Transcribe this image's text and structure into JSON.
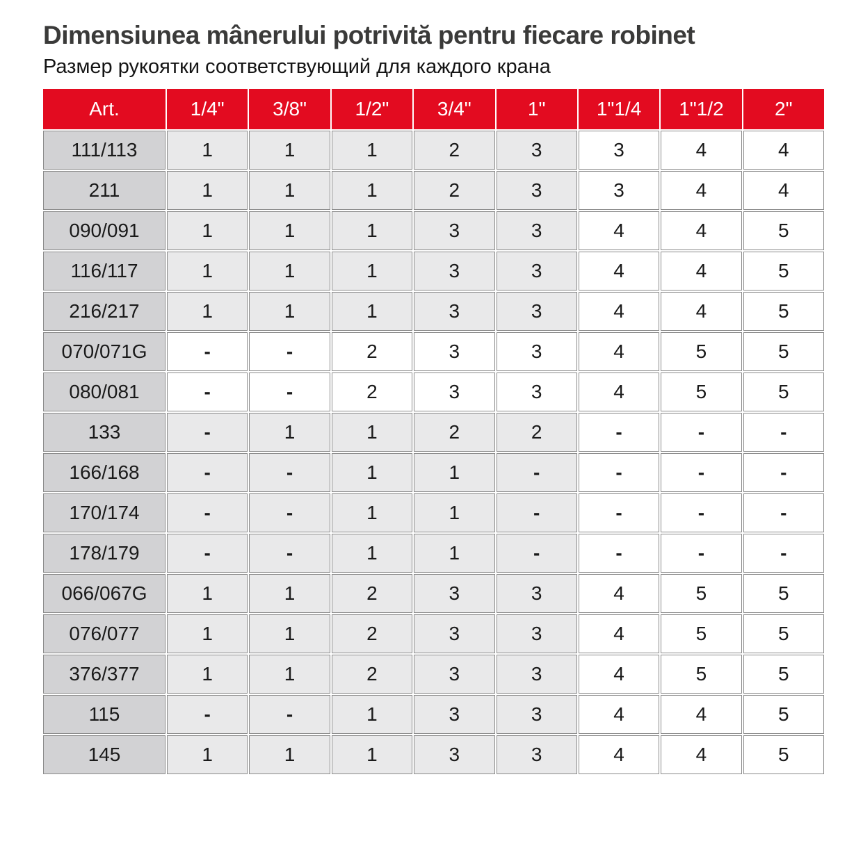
{
  "page": {
    "title": "Dimensiunea mânerului potrivită pentru fiecare robinet",
    "subtitle": "Размер рукоятки соответствующий для каждого крана"
  },
  "table": {
    "columns": [
      "Art.",
      "1/4\"",
      "3/8\"",
      "1/2\"",
      "3/4\"",
      "1\"",
      "1\"1/4",
      "1\"1/2",
      "2\""
    ],
    "shaded_value_columns": 5,
    "rows": [
      {
        "art": "111/113",
        "shaded": true,
        "values": [
          "1",
          "1",
          "1",
          "2",
          "3",
          "3",
          "4",
          "4"
        ]
      },
      {
        "art": "211",
        "shaded": true,
        "values": [
          "1",
          "1",
          "1",
          "2",
          "3",
          "3",
          "4",
          "4"
        ]
      },
      {
        "art": "090/091",
        "shaded": true,
        "values": [
          "1",
          "1",
          "1",
          "3",
          "3",
          "4",
          "4",
          "5"
        ]
      },
      {
        "art": "116/117",
        "shaded": true,
        "values": [
          "1",
          "1",
          "1",
          "3",
          "3",
          "4",
          "4",
          "5"
        ]
      },
      {
        "art": "216/217",
        "shaded": true,
        "values": [
          "1",
          "1",
          "1",
          "3",
          "3",
          "4",
          "4",
          "5"
        ]
      },
      {
        "art": "070/071G",
        "shaded": false,
        "values": [
          "-",
          "-",
          "2",
          "3",
          "3",
          "4",
          "5",
          "5"
        ]
      },
      {
        "art": "080/081",
        "shaded": false,
        "values": [
          "-",
          "-",
          "2",
          "3",
          "3",
          "4",
          "5",
          "5"
        ]
      },
      {
        "art": "133",
        "shaded": true,
        "values": [
          "-",
          "1",
          "1",
          "2",
          "2",
          "-",
          "-",
          "-"
        ]
      },
      {
        "art": "166/168",
        "shaded": true,
        "values": [
          "-",
          "-",
          "1",
          "1",
          "-",
          "-",
          "-",
          "-"
        ]
      },
      {
        "art": "170/174",
        "shaded": true,
        "values": [
          "-",
          "-",
          "1",
          "1",
          "-",
          "-",
          "-",
          "-"
        ]
      },
      {
        "art": "178/179",
        "shaded": true,
        "values": [
          "-",
          "-",
          "1",
          "1",
          "-",
          "-",
          "-",
          "-"
        ]
      },
      {
        "art": "066/067G",
        "shaded": true,
        "values": [
          "1",
          "1",
          "2",
          "3",
          "3",
          "4",
          "5",
          "5"
        ]
      },
      {
        "art": "076/077",
        "shaded": true,
        "values": [
          "1",
          "1",
          "2",
          "3",
          "3",
          "4",
          "5",
          "5"
        ]
      },
      {
        "art": "376/377",
        "shaded": true,
        "values": [
          "1",
          "1",
          "2",
          "3",
          "3",
          "4",
          "5",
          "5"
        ]
      },
      {
        "art": "115",
        "shaded": true,
        "values": [
          "-",
          "-",
          "1",
          "3",
          "3",
          "4",
          "4",
          "5"
        ]
      },
      {
        "art": "145",
        "shaded": true,
        "values": [
          "1",
          "1",
          "1",
          "3",
          "3",
          "4",
          "4",
          "5"
        ]
      }
    ]
  },
  "colors": {
    "header_bg": "#e30b20",
    "header_text": "#ffffff",
    "art_column_bg": "#d2d2d4",
    "shaded_cell_bg": "#e9e9ea",
    "plain_cell_bg": "#ffffff",
    "cell_border": "#8a8a8a",
    "title_text": "#3a3a39",
    "body_text": "#141414"
  }
}
